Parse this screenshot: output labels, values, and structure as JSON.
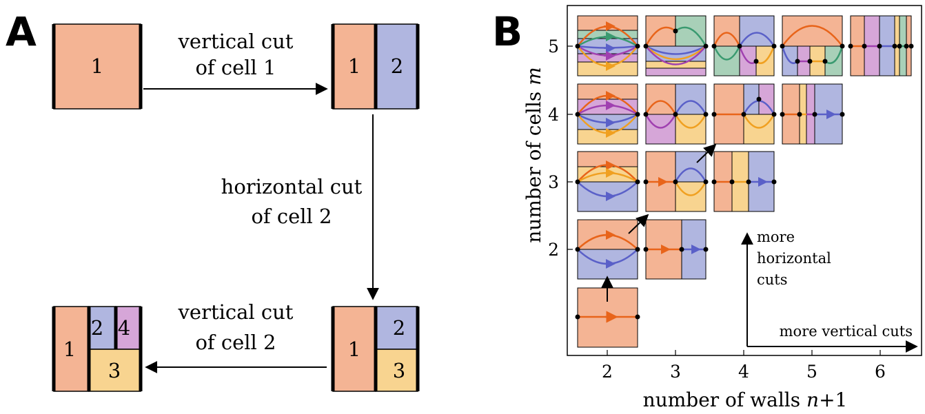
{
  "colors": {
    "cell_orange": "#f4b494",
    "cell_blue": "#b0b6e0",
    "cell_purple": "#d6a6d8",
    "cell_yellow": "#f8d490",
    "cell_green": "#a8d0b8",
    "path_orange": "#e8641a",
    "path_blue": "#5a60c8",
    "path_purple": "#a040b0",
    "path_yellow": "#f0a020",
    "path_green": "#3a9a70",
    "ink": "#000000"
  },
  "panel_a": {
    "label": "A",
    "arrow1_line1": "vertical cut",
    "arrow1_line2": "of cell 1",
    "arrow2_line1": "horizontal cut",
    "arrow2_line2": "of cell 2",
    "arrow3_line1": "vertical cut",
    "arrow3_line2": "of cell 2",
    "cell_labels": {
      "one": "1",
      "two": "2",
      "three": "3",
      "four": "4"
    }
  },
  "panel_b": {
    "label": "B",
    "xlabel_main": "number of walls ",
    "xlabel_var": "n",
    "xlabel_suffix": "+1",
    "ylabel_main": "number of cells ",
    "ylabel_var": "m",
    "x_ticks": [
      "2",
      "3",
      "4",
      "5",
      "6"
    ],
    "y_ticks": [
      "2",
      "3",
      "4",
      "5"
    ],
    "note_up_1": "more",
    "note_up_2": "horizontal",
    "note_up_3": "cuts",
    "note_right": "more vertical cuts"
  }
}
